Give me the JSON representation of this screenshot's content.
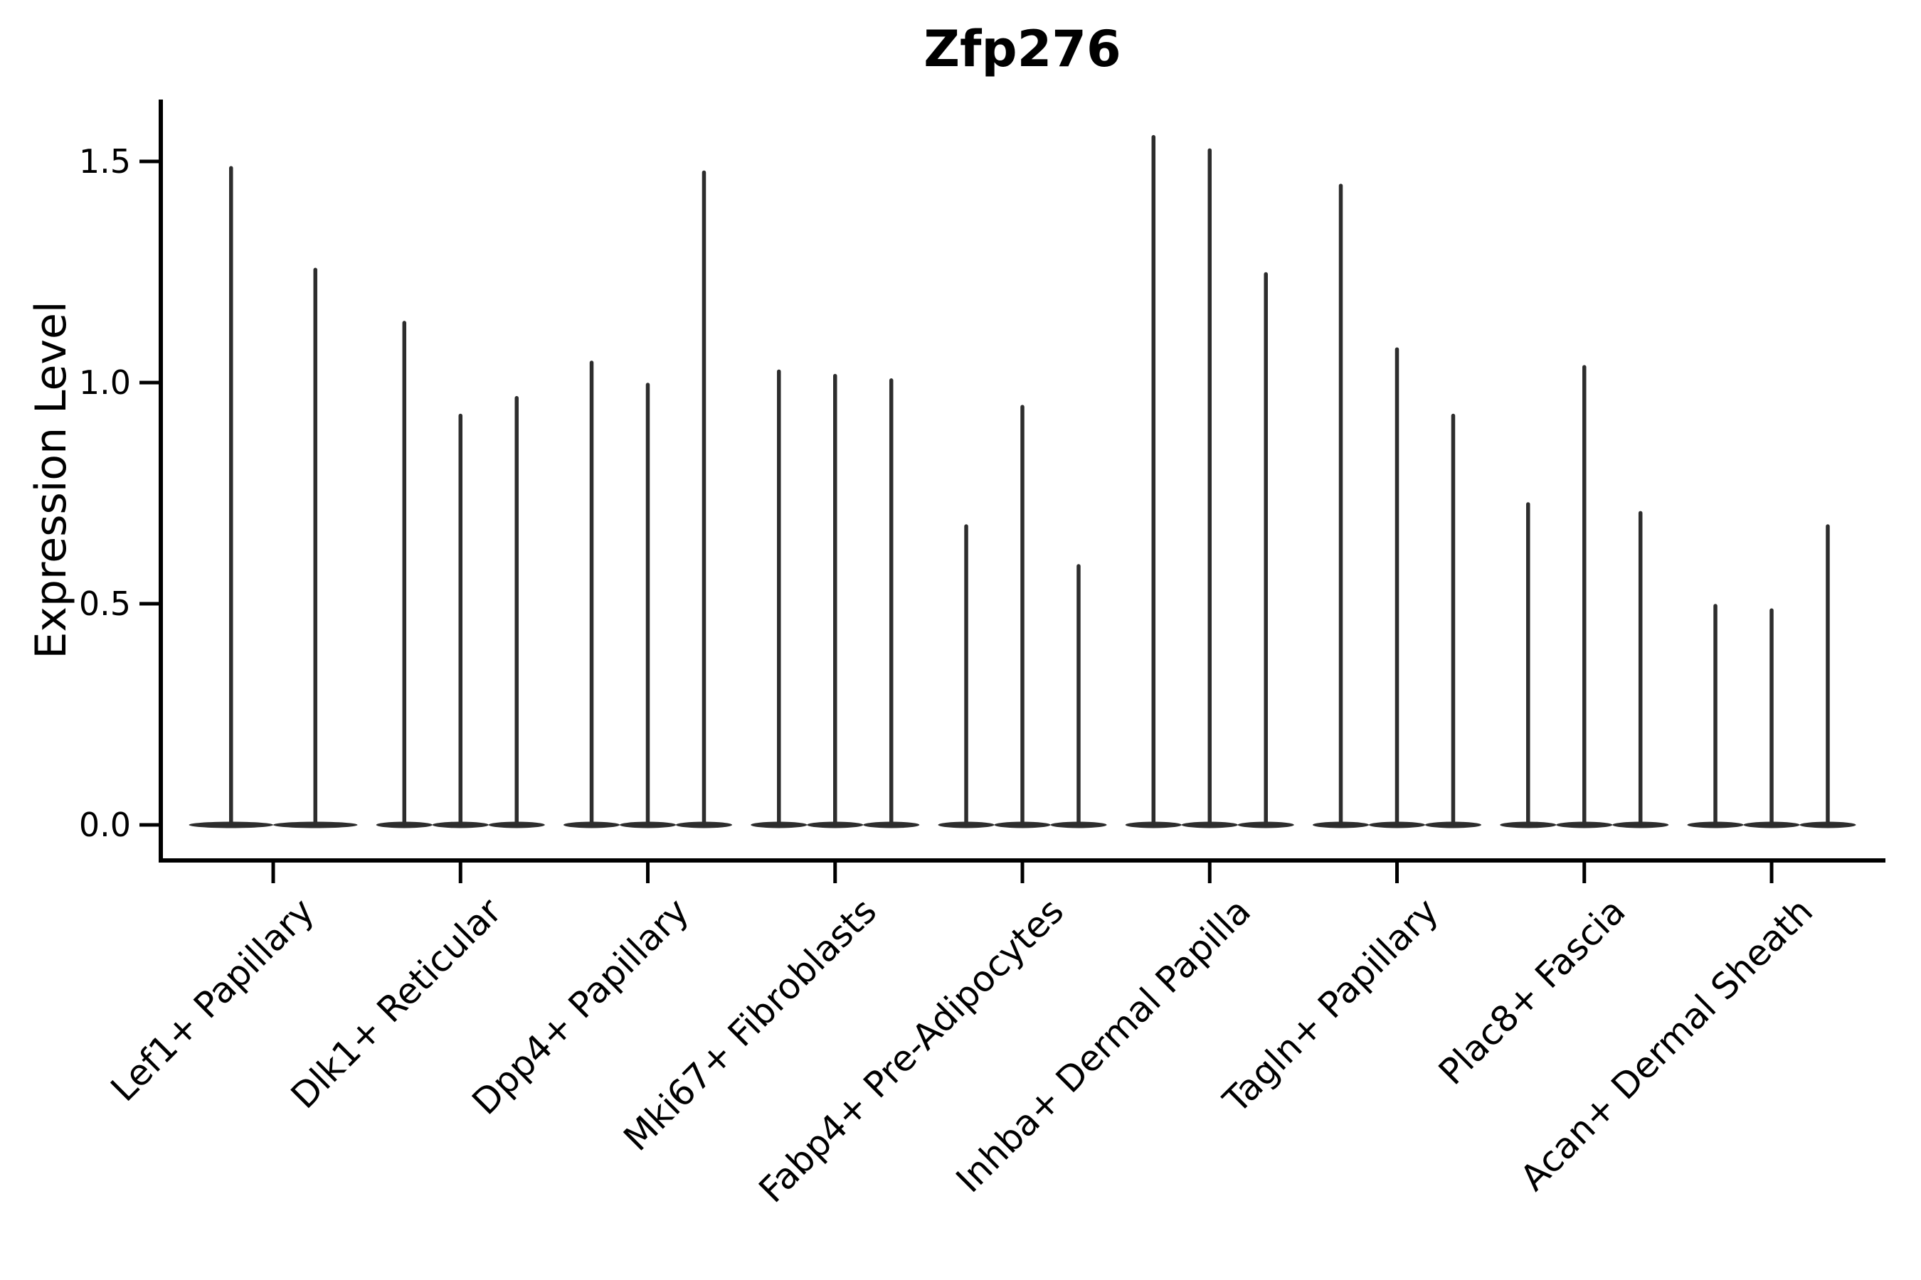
{
  "title": "Zfp276",
  "ylabel": "Expression Level",
  "chart_data": {
    "type": "violin",
    "title": "Zfp276",
    "xlabel": "",
    "ylabel": "Expression Level",
    "grid": false,
    "legend": "none",
    "yticks": [
      0.0,
      0.5,
      1.0,
      1.5
    ],
    "ylim": [
      -0.08,
      1.64
    ],
    "categories": [
      "Lef1+ Papillary",
      "Dlk1+ Reticular",
      "Dpp4+ Papillary",
      "Mki67+ Fibroblasts",
      "Fabp4+ Pre-Adipocytes",
      "Inhba+ Dermal Papilla",
      "Tagln+ Papillary",
      "Plac8+ Fascia",
      "Acan+ Dermal Sheath"
    ],
    "series": [
      {
        "category": "Lef1+ Papillary",
        "violin_peaks": [
          1.49,
          1.26
        ]
      },
      {
        "category": "Dlk1+ Reticular",
        "violin_peaks": [
          1.14,
          0.93,
          0.97
        ]
      },
      {
        "category": "Dpp4+ Papillary",
        "violin_peaks": [
          1.05,
          1.0,
          1.48
        ]
      },
      {
        "category": "Mki67+ Fibroblasts",
        "violin_peaks": [
          1.03,
          1.02,
          1.01
        ]
      },
      {
        "category": "Fabp4+ Pre-Adipocytes",
        "violin_peaks": [
          0.68,
          0.95,
          0.59
        ]
      },
      {
        "category": "Inhba+ Dermal Papilla",
        "violin_peaks": [
          1.56,
          1.53,
          1.25
        ]
      },
      {
        "category": "Tagln+ Papillary",
        "violin_peaks": [
          1.45,
          1.08,
          0.93
        ]
      },
      {
        "category": "Plac8+ Fascia",
        "violin_peaks": [
          0.73,
          1.04,
          0.71
        ]
      },
      {
        "category": "Acan+ Dermal Sheath",
        "violin_peaks": [
          0.5,
          0.49,
          0.68
        ]
      }
    ],
    "violin_baseline_value": 0.0,
    "colors": {
      "violin_ink": "#2d2d2d",
      "axis_ink": "#000000",
      "background": "#ffffff"
    }
  }
}
